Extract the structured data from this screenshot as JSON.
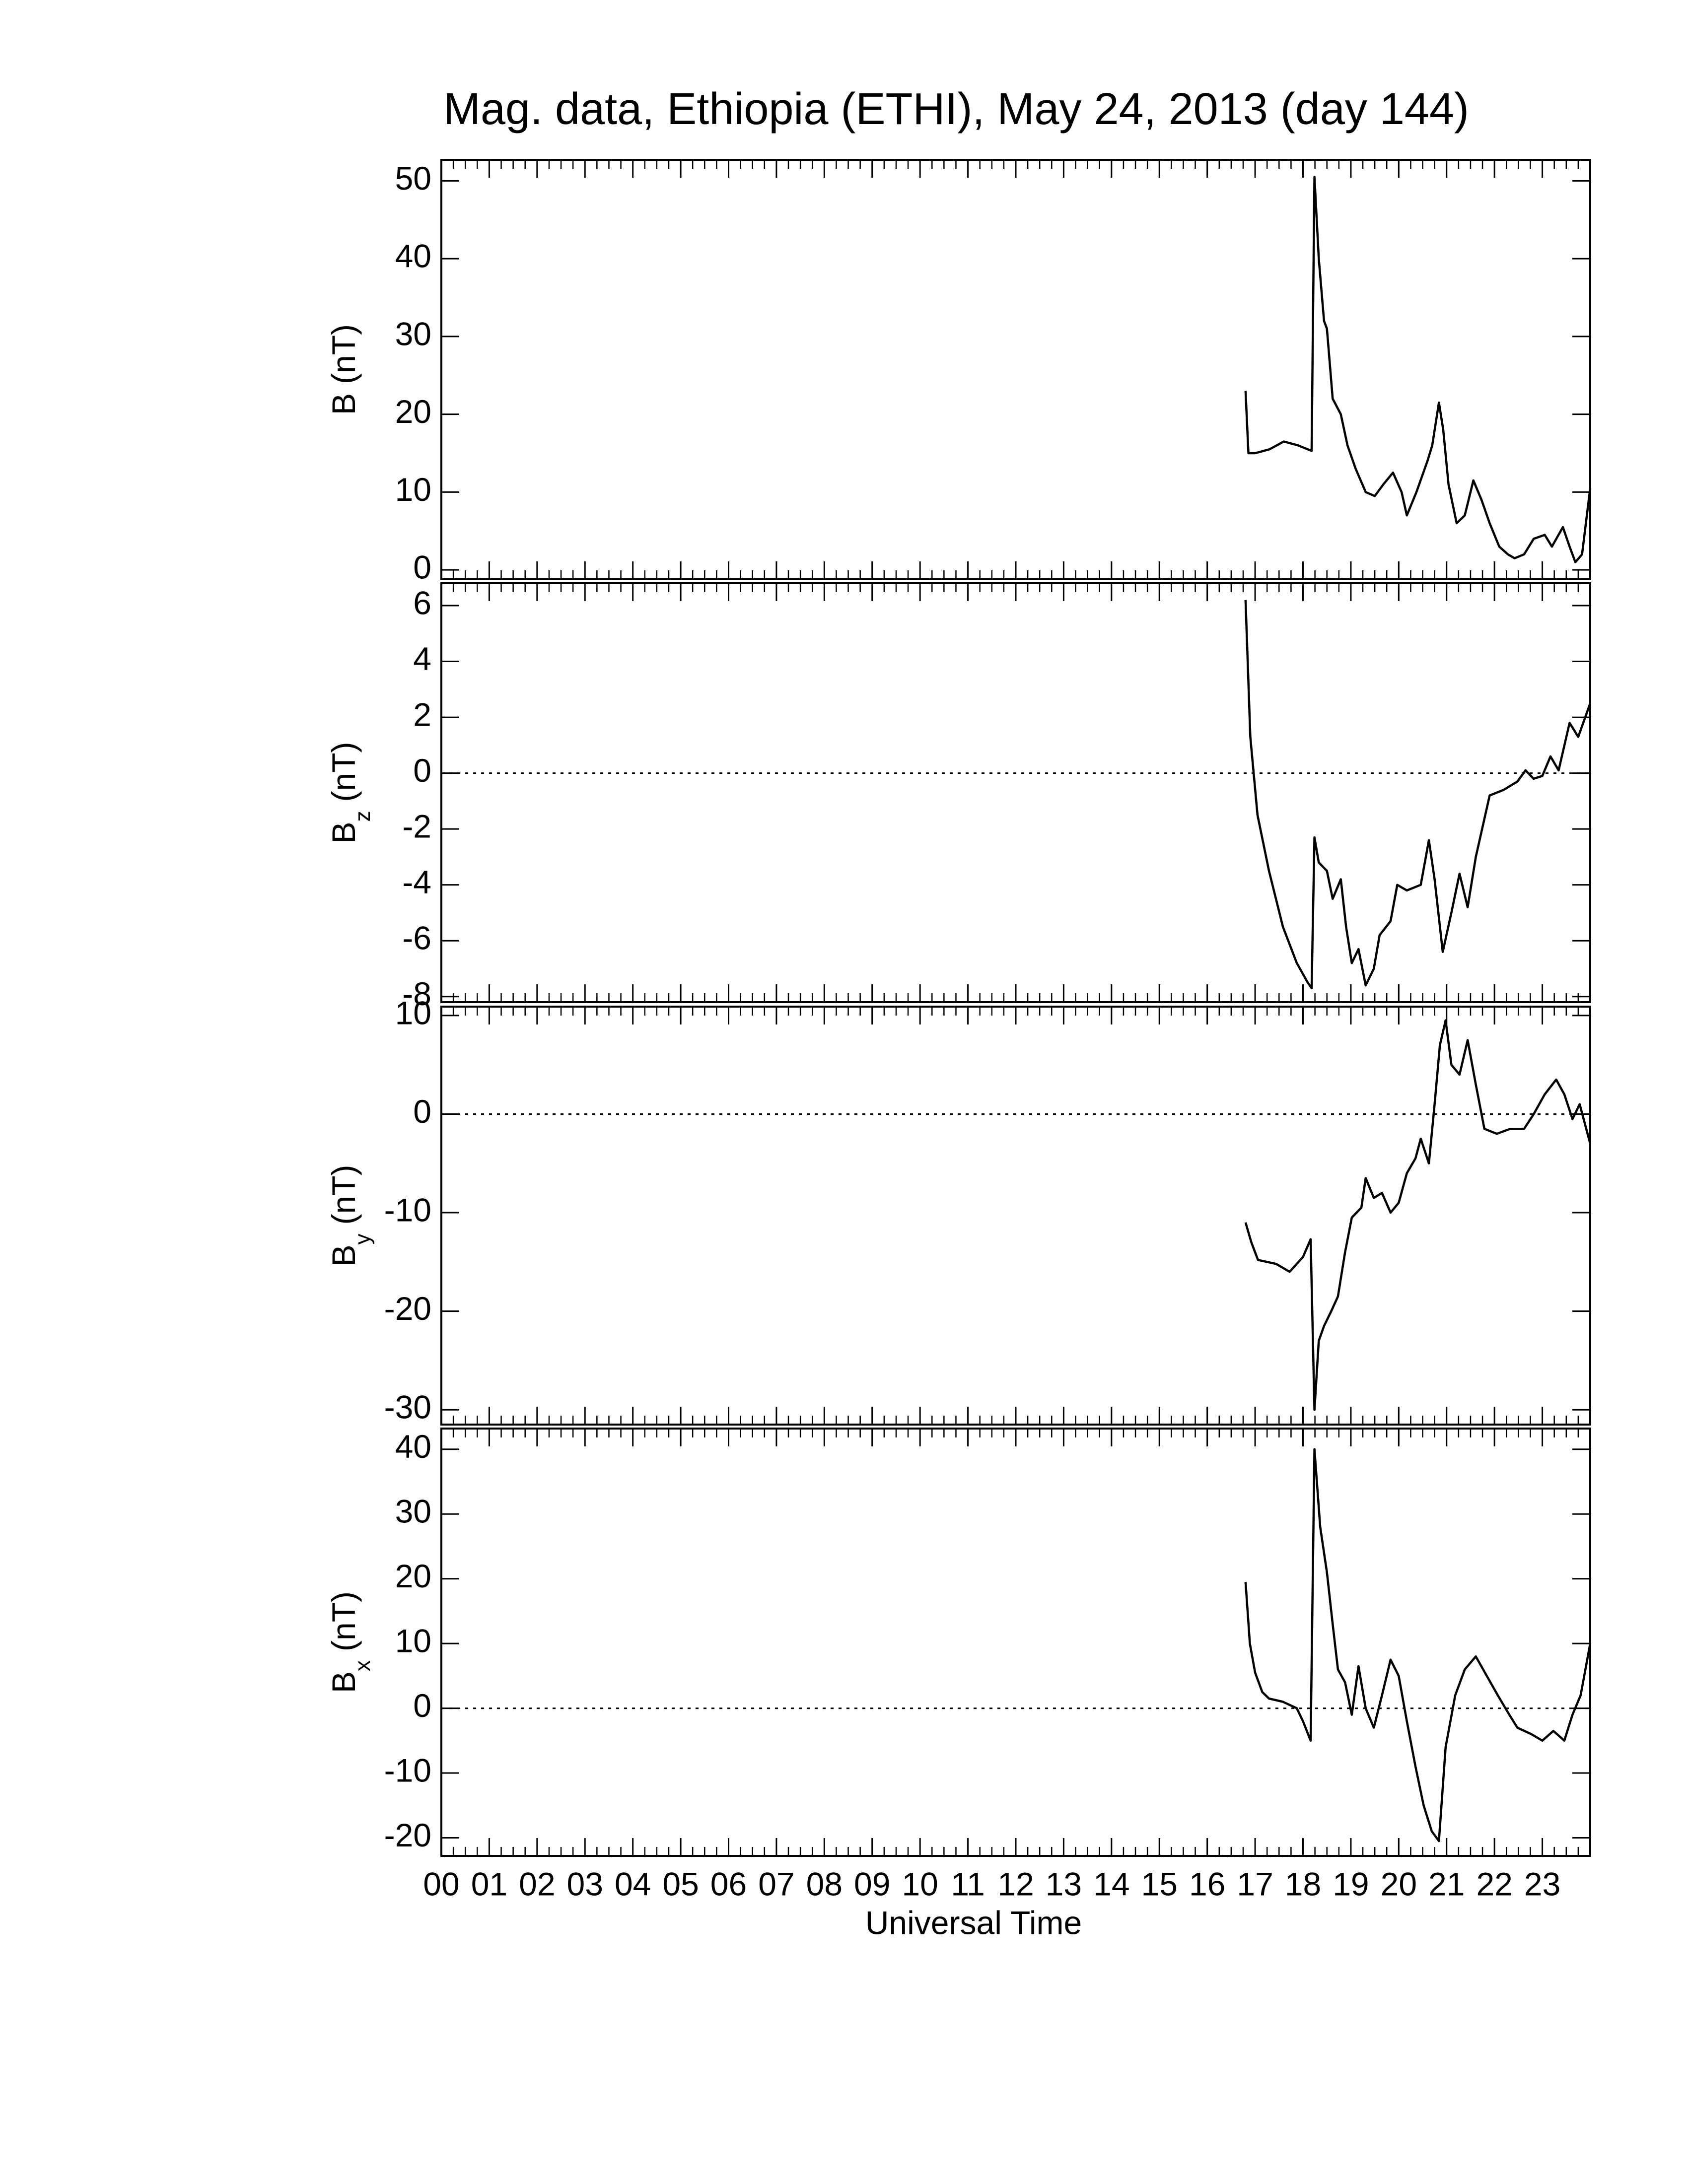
{
  "chart_data": [
    {
      "type": "line",
      "title": "Mag. data, Ethiopia (ETHI), May 24, 2013 (day 144)",
      "ylabel": {
        "symbol": "B",
        "unit": "(nT)"
      },
      "xlim": [
        0,
        24
      ],
      "ylim": [
        -1.2,
        52.7
      ],
      "yticks": [
        0,
        10,
        20,
        30,
        40,
        50
      ],
      "color": "#000000",
      "x": [
        16.8,
        16.86,
        17.0,
        17.3,
        17.6,
        17.9,
        18.1,
        18.18,
        18.24,
        18.33,
        18.44,
        18.5,
        18.62,
        18.79,
        18.93,
        19.1,
        19.31,
        19.5,
        19.68,
        19.88,
        20.06,
        20.17,
        20.37,
        20.6,
        20.7,
        20.84,
        20.93,
        21.04,
        21.21,
        21.38,
        21.56,
        21.73,
        21.9,
        22.1,
        22.28,
        22.42,
        22.62,
        22.82,
        23.05,
        23.2,
        23.43,
        23.57,
        23.69,
        23.83,
        24.0
      ],
      "values": [
        23,
        15,
        15,
        15.5,
        16.5,
        16,
        15.5,
        15.3,
        50.5,
        40,
        32,
        31,
        22,
        20,
        16,
        13,
        10,
        9.5,
        11,
        12.5,
        10,
        7,
        10,
        14,
        16,
        21.5,
        18,
        11,
        6,
        7,
        11.5,
        9,
        6,
        3,
        2,
        1.5,
        2,
        4,
        4.5,
        3,
        5.5,
        3,
        1,
        2,
        10.5
      ]
    },
    {
      "type": "line",
      "ylabel": {
        "symbol": "B",
        "subscript": "z",
        "unit": "(nT)"
      },
      "xlim": [
        0,
        24
      ],
      "ylim": [
        -8.2,
        6.8
      ],
      "yticks": [
        -8,
        -6,
        -4,
        -2,
        0,
        2,
        4,
        6
      ],
      "zero_line": true,
      "color": "#000000",
      "x": [
        16.8,
        16.9,
        17.05,
        17.29,
        17.58,
        17.87,
        18.1,
        18.18,
        18.24,
        18.33,
        18.5,
        18.62,
        18.79,
        18.9,
        19.02,
        19.16,
        19.31,
        19.48,
        19.6,
        19.83,
        19.97,
        20.17,
        20.46,
        20.63,
        20.75,
        20.92,
        21.1,
        21.27,
        21.44,
        21.61,
        21.9,
        22.19,
        22.48,
        22.65,
        22.82,
        23.0,
        23.17,
        23.34,
        23.57,
        23.75,
        24.0
      ],
      "values": [
        6.2,
        1.3,
        -1.5,
        -3.5,
        -5.5,
        -6.8,
        -7.5,
        -7.7,
        -2.3,
        -3.2,
        -3.5,
        -4.5,
        -3.8,
        -5.5,
        -6.8,
        -6.3,
        -7.6,
        -7,
        -5.8,
        -5.3,
        -4,
        -4.2,
        -4,
        -2.4,
        -3.8,
        -6.4,
        -5,
        -3.6,
        -4.8,
        -3,
        -0.8,
        -0.6,
        -0.3,
        0.1,
        -0.2,
        -0.1,
        0.6,
        0.1,
        1.8,
        1.3,
        2.5
      ]
    },
    {
      "type": "line",
      "ylabel": {
        "symbol": "B",
        "subscript": "y",
        "unit": "(nT)"
      },
      "xlim": [
        0,
        24
      ],
      "ylim": [
        -31.5,
        10.9
      ],
      "yticks": [
        -30,
        -20,
        -10,
        0,
        10
      ],
      "zero_line": true,
      "color": "#000000",
      "x": [
        16.8,
        16.92,
        17.06,
        17.44,
        17.72,
        18.0,
        18.16,
        18.24,
        18.33,
        18.44,
        18.59,
        18.73,
        18.88,
        19.02,
        19.22,
        19.31,
        19.48,
        19.65,
        19.83,
        20.0,
        20.17,
        20.35,
        20.46,
        20.63,
        20.75,
        20.86,
        20.98,
        21.1,
        21.27,
        21.44,
        21.61,
        21.79,
        22.05,
        22.33,
        22.62,
        22.82,
        23.05,
        23.29,
        23.46,
        23.63,
        23.78,
        24.0
      ],
      "values": [
        -11,
        -13,
        -14.8,
        -15.2,
        -16,
        -14.5,
        -12.7,
        -30,
        -23,
        -21.5,
        -20,
        -18.5,
        -14,
        -10.5,
        -9.5,
        -6.5,
        -8.5,
        -8,
        -10,
        -9,
        -6,
        -4.5,
        -2.5,
        -5,
        1,
        7,
        9.5,
        5,
        4,
        7.5,
        3,
        -1.5,
        -2,
        -1.5,
        -1.5,
        0,
        2,
        3.5,
        2,
        -0.5,
        1,
        -3
      ]
    },
    {
      "type": "line",
      "ylabel": {
        "symbol": "B",
        "subscript": "x",
        "unit": "(nT)"
      },
      "xlabel": "Universal Time",
      "xlim": [
        0,
        24
      ],
      "ylim": [
        -22.8,
        43.2
      ],
      "yticks": [
        -20,
        -10,
        0,
        10,
        20,
        30,
        40
      ],
      "zero_line": true,
      "color": "#000000",
      "xticks": [
        {
          "value": 0,
          "label": "00"
        },
        {
          "value": 1,
          "label": "01"
        },
        {
          "value": 2,
          "label": "02"
        },
        {
          "value": 3,
          "label": "03"
        },
        {
          "value": 4,
          "label": "04"
        },
        {
          "value": 5,
          "label": "05"
        },
        {
          "value": 6,
          "label": "06"
        },
        {
          "value": 7,
          "label": "07"
        },
        {
          "value": 8,
          "label": "08"
        },
        {
          "value": 9,
          "label": "09"
        },
        10,
        11,
        12,
        13,
        14,
        15,
        16,
        17,
        18,
        19,
        20,
        21,
        22,
        23
      ],
      "x": [
        16.8,
        16.89,
        17.0,
        17.15,
        17.29,
        17.58,
        17.87,
        18.0,
        18.16,
        18.24,
        18.36,
        18.5,
        18.62,
        18.73,
        18.88,
        19.02,
        19.16,
        19.31,
        19.48,
        19.65,
        19.83,
        20.0,
        20.17,
        20.35,
        20.52,
        20.69,
        20.84,
        20.98,
        21.18,
        21.38,
        21.61,
        21.84,
        22.07,
        22.31,
        22.48,
        22.77,
        23.0,
        23.23,
        23.46,
        23.63,
        23.8,
        24.0
      ],
      "values": [
        19.5,
        10,
        5.5,
        2.5,
        1.5,
        1,
        0,
        -2,
        -5,
        40,
        28,
        21,
        13,
        6,
        4,
        -1,
        6.5,
        0,
        -3,
        2,
        7.5,
        5,
        -2,
        -9,
        -15,
        -19,
        -20.5,
        -6,
        2,
        6,
        8,
        5,
        2,
        -1,
        -3,
        -4,
        -5,
        -3.5,
        -5,
        -1,
        2,
        10
      ]
    }
  ]
}
